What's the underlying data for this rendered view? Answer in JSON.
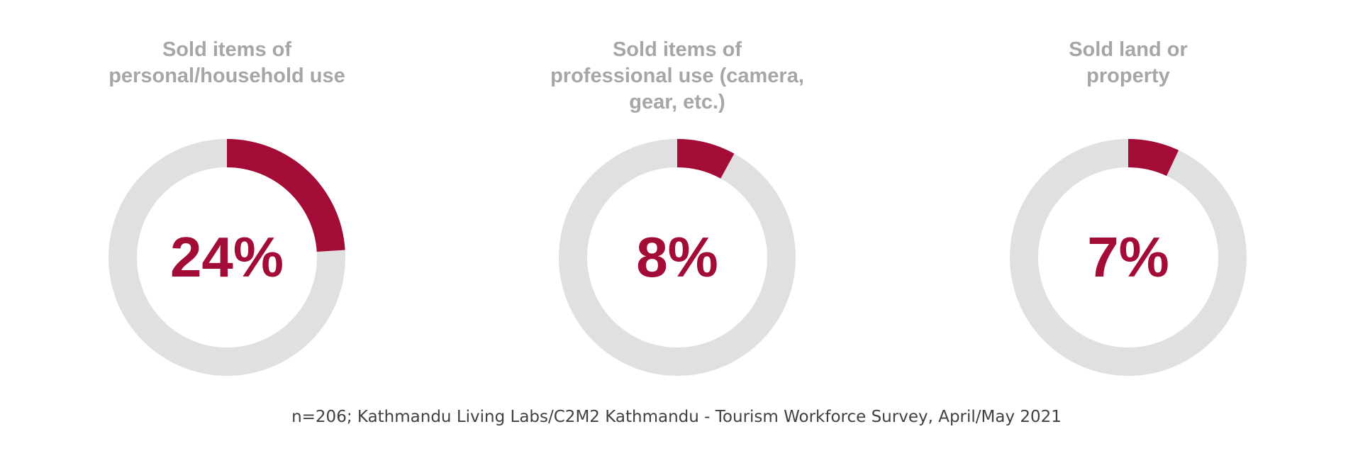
{
  "chart_data": [
    {
      "type": "pie",
      "title": "Sold items of personal/household use",
      "title_lines": [
        "Sold items of",
        "personal/household use"
      ],
      "value": 24,
      "value_label": "24%",
      "max": 100
    },
    {
      "type": "pie",
      "title": "Sold items of professional use (camera, gear, etc.)",
      "title_lines": [
        "Sold items of",
        "professional use (camera,",
        "gear, etc.)"
      ],
      "value": 8,
      "value_label": "8%",
      "max": 100
    },
    {
      "type": "pie",
      "title": "Sold land or property",
      "title_lines": [
        "Sold land or",
        "property"
      ],
      "value": 7,
      "value_label": "7%",
      "max": 100
    }
  ],
  "colors": {
    "accent": "#a30c36",
    "track": "#e0e0e0",
    "title": "#a6a6a6",
    "note": "#404040"
  },
  "footer": {
    "source_note": "n=206; Kathmandu Living Labs/C2M2 Kathmandu - Tourism Workforce Survey, April/May 2021"
  }
}
